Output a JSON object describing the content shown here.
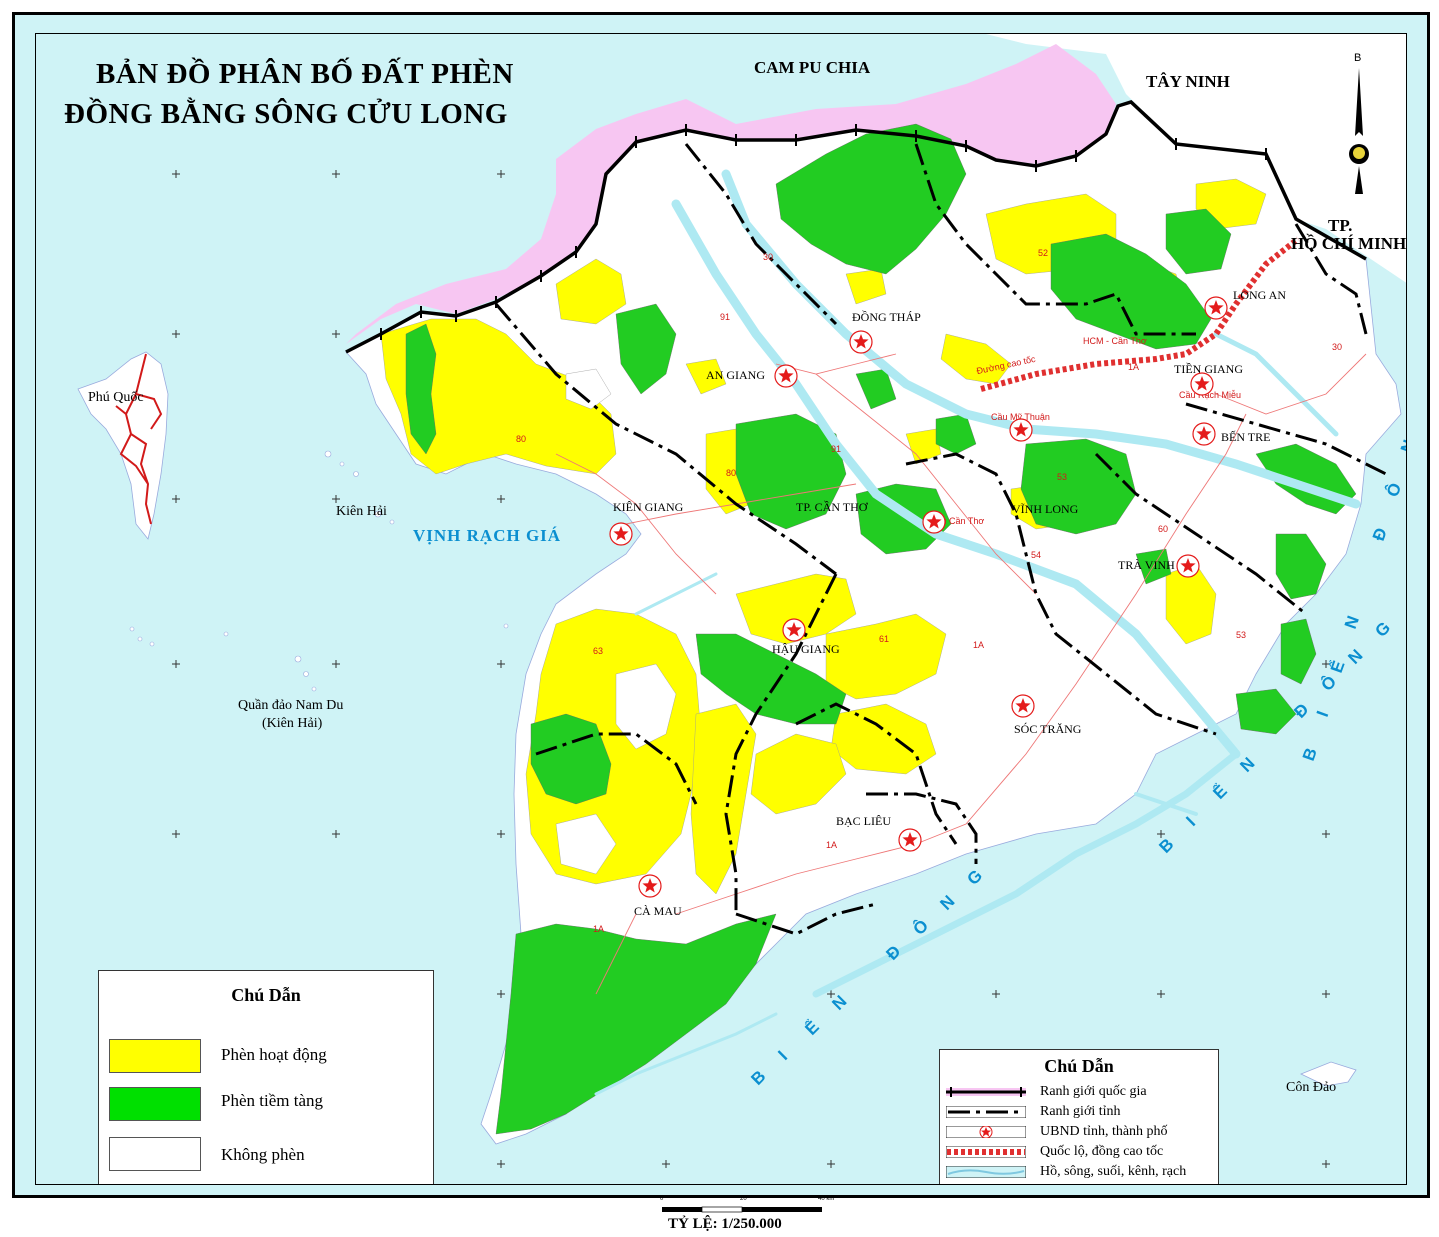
{
  "title": {
    "line1": "BẢN ĐỒ PHÂN BỐ ĐẤT PHÈN",
    "line2": "ĐỒNG BẰNG SÔNG CỬU LONG"
  },
  "regions": {
    "cambodia": "CAM PU CHIA",
    "tay_ninh": "TÂY NINH",
    "hcm_1": "TP.",
    "hcm_2": "HỒ CHÍ MINH",
    "phu_quoc": "Phú Quốc",
    "kien_hai": "Kiên Hải",
    "nam_du_1": "Quần đảo Nam Du",
    "nam_du_2": "(Kiên Hải)",
    "con_dao": "Côn Đảo"
  },
  "seas": {
    "vinh_rach_gia": "VỊNH RẠCH GIÁ",
    "bien_dong_1": "BIỂN ĐÔNG",
    "bien_dong_2": "BIỂN ĐÔNG",
    "bien_dong_3": "BIỂN ĐÔNG"
  },
  "provinces": {
    "dong_thap": "ĐỒNG THÁP",
    "an_giang": "AN GIANG",
    "long_an": "LONG AN",
    "tien_giang": "TIỀN GIANG",
    "ben_tre": "BẾN TRE",
    "vinh_long": "VĨNH LONG",
    "tra_vinh": "TRÀ VINH",
    "can_tho": "TP. CẦN THƠ",
    "kien_giang": "KIÊN GIANG",
    "hau_giang": "HẬU GIANG",
    "soc_trang": "SÓC TRĂNG",
    "bac_lieu": "BẠC LIÊU",
    "ca_mau": "CÀ MAU"
  },
  "roads": {
    "r30a": "30",
    "r30b": "30",
    "r91a": "91",
    "r91b": "91",
    "r80a": "80",
    "r80b": "80",
    "r52": "52",
    "r53a": "53",
    "r53b": "53",
    "r54": "54",
    "r60": "60",
    "r61": "61",
    "r63": "63",
    "r1a_1": "1A",
    "r1a_2": "1A",
    "r1a_3": "1A",
    "r1a_4": "1A",
    "hcm_cantho": "HCM - Cần Thơ",
    "dong_cao_toc": "Đường cao tốc",
    "cau_rach_mieu": "Cầu Rạch Miễu",
    "cau_my_thuan": "Cầu Mỹ Thuận",
    "cau_can_tho": "Cầu Cần Thơ"
  },
  "legend_soil": {
    "title": "Chú Dẫn",
    "items": [
      {
        "label": "Phèn hoạt động",
        "color": "#ffff00"
      },
      {
        "label": "Phèn tiềm tàng",
        "color": "#00e000"
      },
      {
        "label": "Không phèn",
        "color": "#ffffff"
      }
    ]
  },
  "legend_lines": {
    "title": "Chú Dẫn",
    "items": [
      {
        "label": "Ranh giới quốc gia"
      },
      {
        "label": "Ranh giới tỉnh"
      },
      {
        "label": "UBND tỉnh, thành phố"
      },
      {
        "label": "Quốc lộ, đồng cao tốc"
      },
      {
        "label": "Hồ, sông, suối, kênh, rạch"
      }
    ]
  },
  "north": "B",
  "scale": {
    "ticks": [
      "0",
      "20",
      "40 km"
    ],
    "label": "TỶ LỆ: 1/250.000"
  },
  "colors": {
    "sea": "#cff3f6",
    "active_acid": "#ffff00",
    "potential_acid": "#22cc22",
    "non_acid": "#ffffff",
    "border_pink": "#f7c6f2",
    "river": "#aee9f2",
    "road": "#e03030",
    "star": "#e41b1b"
  }
}
